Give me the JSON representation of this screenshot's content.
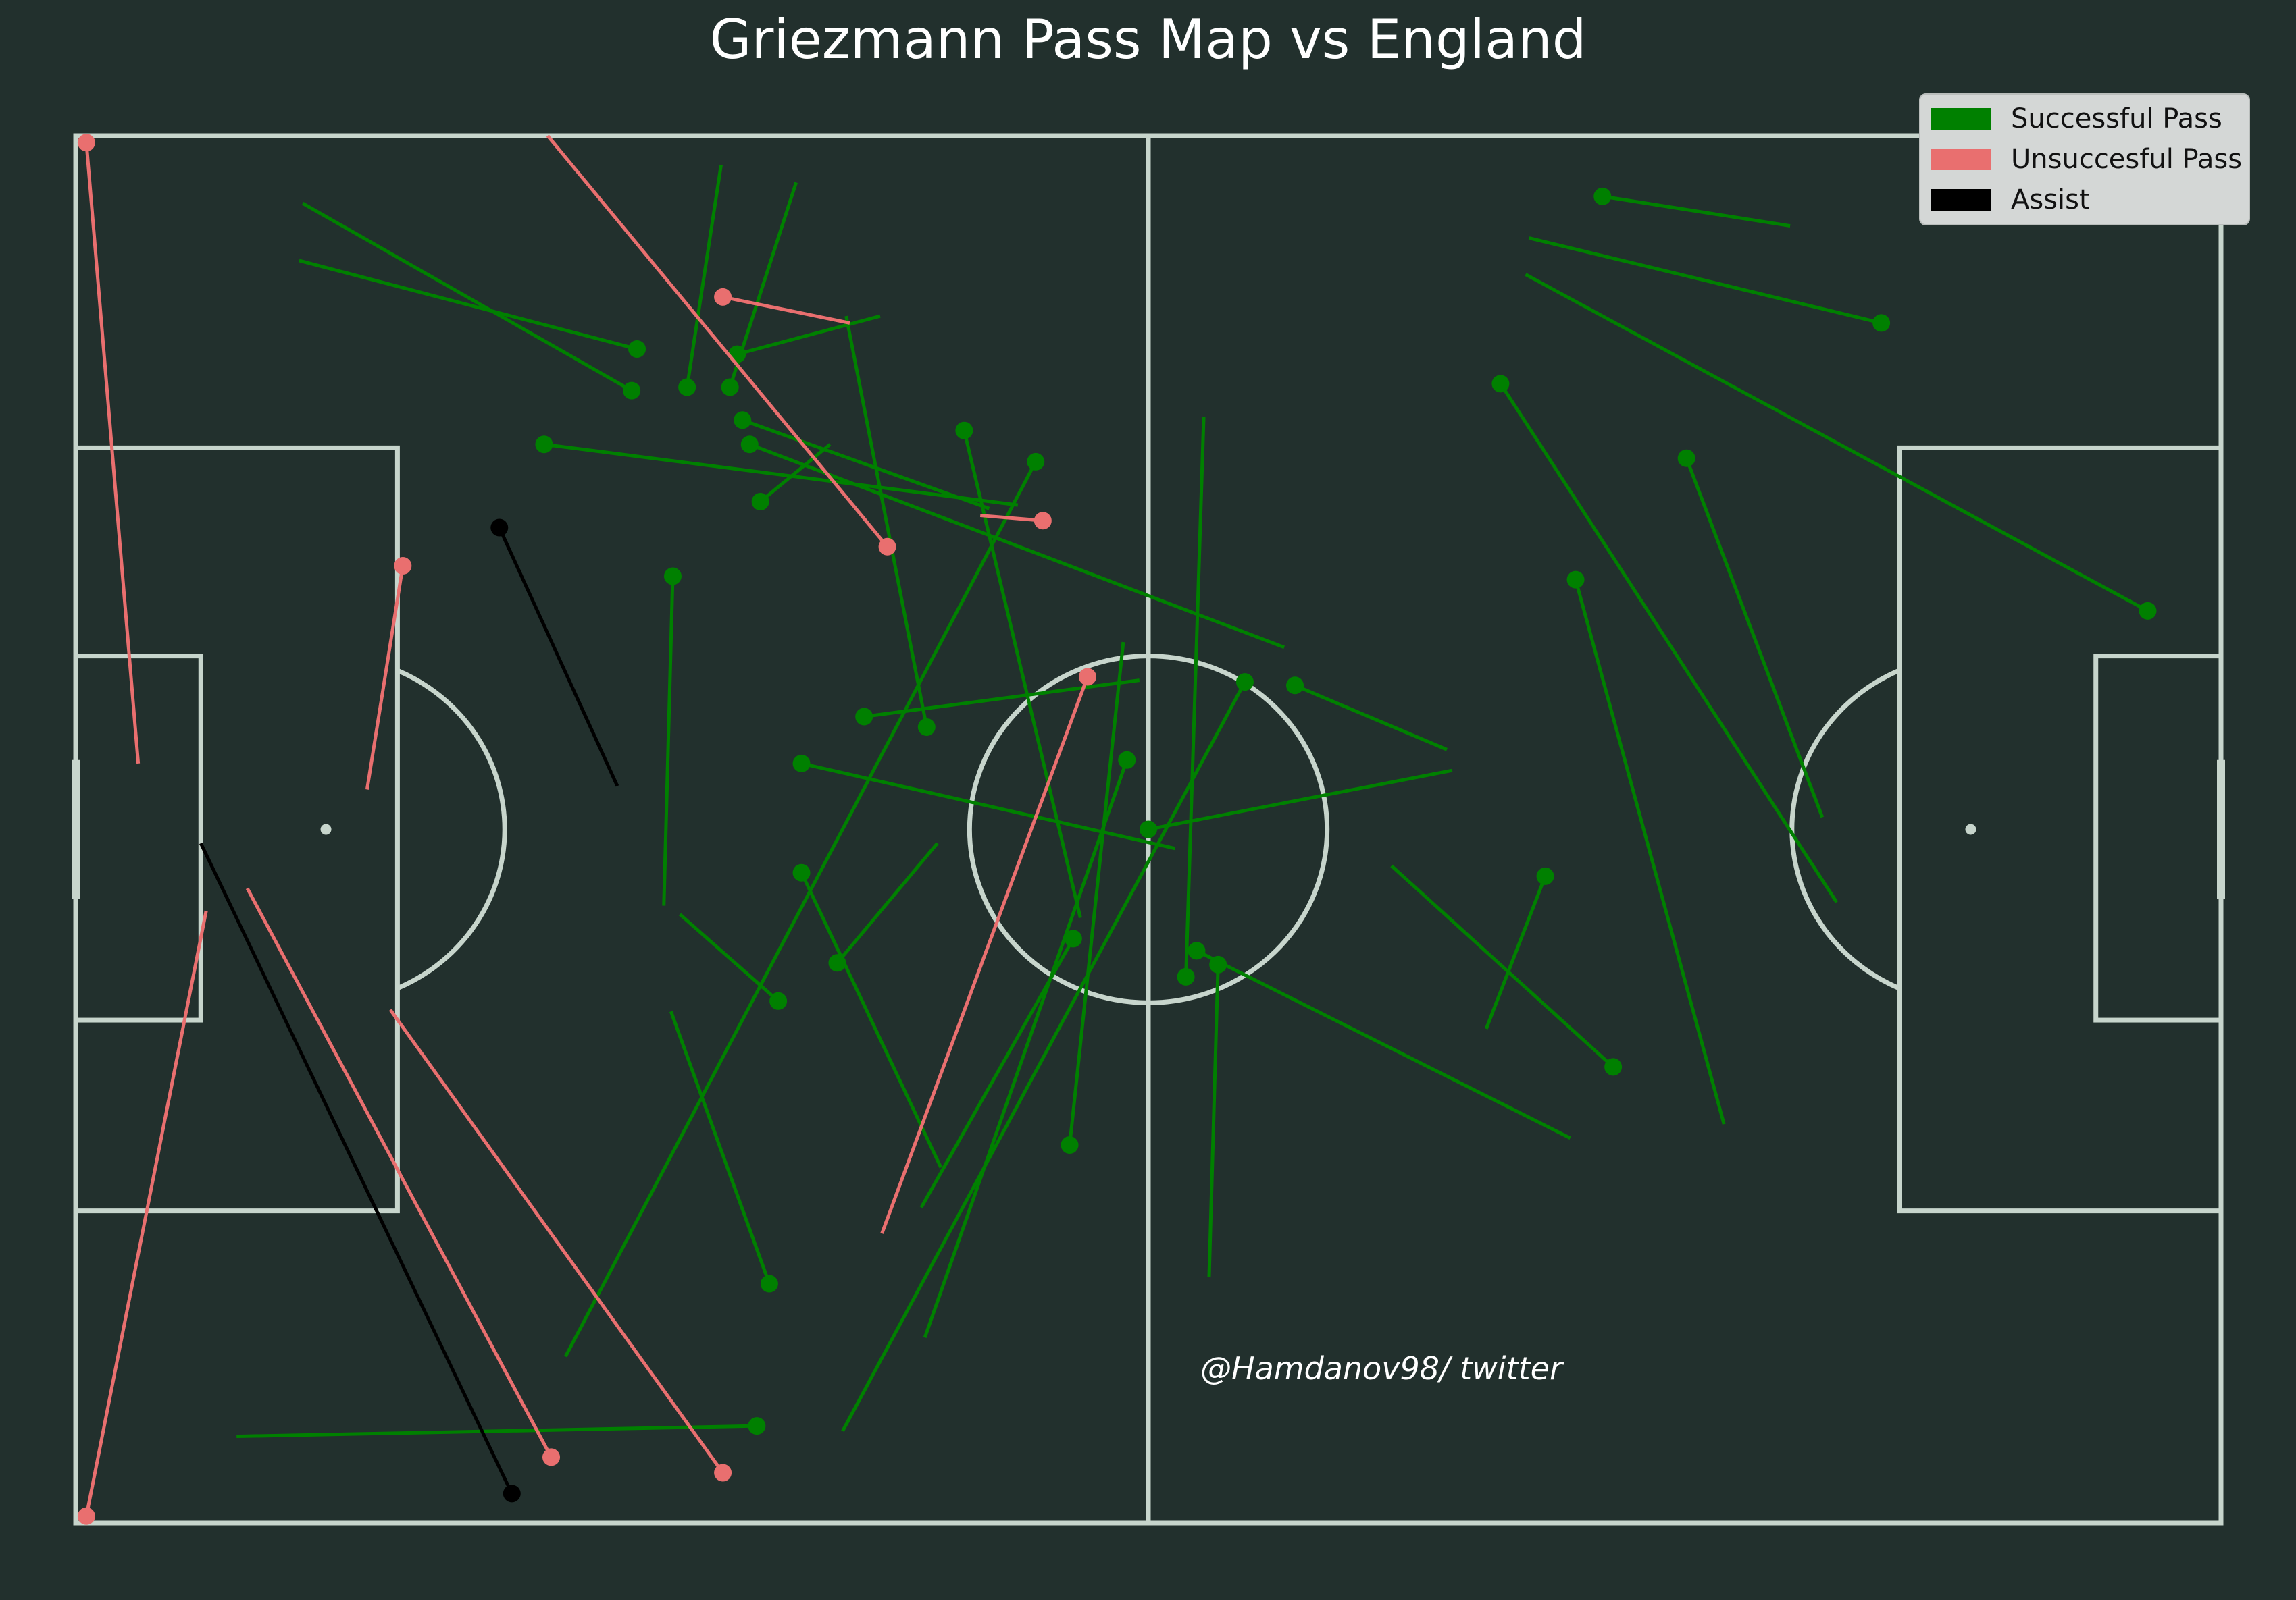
{
  "chart_data": {
    "type": "scatter",
    "title": "Griezmann Pass Map vs England",
    "credit": "@Hamdanov98/ twitter",
    "pitch": {
      "length": 120,
      "width": 80
    },
    "legend": {
      "placement": "top-right",
      "items": [
        {
          "label": "Successful Pass",
          "color": "#008000"
        },
        {
          "label": "Unsuccesful Pass",
          "color": "#e96f6f"
        },
        {
          "label": "Assist",
          "color": "#000000"
        }
      ]
    },
    "colors": {
      "pitch": "#22302d",
      "lines": "#c7d5cc",
      "successful": "#008000",
      "unsuccessful": "#e96f6f",
      "assist": "#000000"
    },
    "series": [
      {
        "name": "Successful Pass",
        "passes": [
          {
            "x": 31.4,
            "y": 12.3,
            "end_x": 12.5,
            "end_y": 7.2
          },
          {
            "x": 31.1,
            "y": 14.7,
            "end_x": 12.7,
            "end_y": 3.9
          },
          {
            "x": 34.2,
            "y": 14.5,
            "end_x": 36.1,
            "end_y": 1.7
          },
          {
            "x": 36.6,
            "y": 14.5,
            "end_x": 40.3,
            "end_y": 2.7
          },
          {
            "x": 37.0,
            "y": 12.6,
            "end_x": 45.0,
            "end_y": 10.4
          },
          {
            "x": 26.2,
            "y": 17.8,
            "end_x": 52.7,
            "end_y": 21.3
          },
          {
            "x": 37.3,
            "y": 16.4,
            "end_x": 51.1,
            "end_y": 21.5
          },
          {
            "x": 37.7,
            "y": 17.8,
            "end_x": 67.6,
            "end_y": 29.5
          },
          {
            "x": 38.3,
            "y": 21.1,
            "end_x": 42.2,
            "end_y": 17.8
          },
          {
            "x": 49.7,
            "y": 17.0,
            "end_x": 56.2,
            "end_y": 45.1
          },
          {
            "x": 47.6,
            "y": 34.1,
            "end_x": 43.1,
            "end_y": 10.4
          },
          {
            "x": 53.7,
            "y": 18.8,
            "end_x": 27.4,
            "end_y": 70.4
          },
          {
            "x": 33.4,
            "y": 25.4,
            "end_x": 32.9,
            "end_y": 44.4
          },
          {
            "x": 44.1,
            "y": 33.5,
            "end_x": 59.5,
            "end_y": 31.4
          },
          {
            "x": 40.6,
            "y": 36.2,
            "end_x": 61.5,
            "end_y": 41.1
          },
          {
            "x": 40.6,
            "y": 42.5,
            "end_x": 48.4,
            "end_y": 59.5
          },
          {
            "x": 42.6,
            "y": 47.7,
            "end_x": 48.2,
            "end_y": 40.8
          },
          {
            "x": 39.3,
            "y": 49.9,
            "end_x": 33.8,
            "end_y": 44.9
          },
          {
            "x": 38.8,
            "y": 66.2,
            "end_x": 33.3,
            "end_y": 50.5
          },
          {
            "x": 38.1,
            "y": 74.4,
            "end_x": 9.0,
            "end_y": 75.0
          },
          {
            "x": 55.8,
            "y": 46.3,
            "end_x": 47.3,
            "end_y": 61.8
          },
          {
            "x": 58.8,
            "y": 36.0,
            "end_x": 47.5,
            "end_y": 69.3
          },
          {
            "x": 55.6,
            "y": 58.2,
            "end_x": 58.6,
            "end_y": 29.2
          },
          {
            "x": 65.4,
            "y": 31.5,
            "end_x": 42.9,
            "end_y": 74.7
          },
          {
            "x": 60.0,
            "y": 40.0,
            "end_x": 77.0,
            "end_y": 36.6
          },
          {
            "x": 62.1,
            "y": 48.5,
            "end_x": 63.1,
            "end_y": 16.2
          },
          {
            "x": 63.9,
            "y": 47.8,
            "end_x": 63.4,
            "end_y": 65.8
          },
          {
            "x": 62.7,
            "y": 47.0,
            "end_x": 83.6,
            "end_y": 57.8
          },
          {
            "x": 68.2,
            "y": 31.7,
            "end_x": 76.7,
            "end_y": 35.4
          },
          {
            "x": 82.2,
            "y": 42.7,
            "end_x": 78.9,
            "end_y": 51.5
          },
          {
            "x": 86.0,
            "y": 53.7,
            "end_x": 73.6,
            "end_y": 42.1
          },
          {
            "x": 83.9,
            "y": 25.6,
            "end_x": 92.2,
            "end_y": 57.0
          },
          {
            "x": 90.1,
            "y": 18.6,
            "end_x": 97.7,
            "end_y": 39.3
          },
          {
            "x": 79.7,
            "y": 14.3,
            "end_x": 98.5,
            "end_y": 44.2
          },
          {
            "x": 85.4,
            "y": 3.5,
            "end_x": 95.9,
            "end_y": 5.2
          },
          {
            "x": 101.0,
            "y": 10.8,
            "end_x": 81.3,
            "end_y": 5.9
          },
          {
            "x": 115.9,
            "y": 27.4,
            "end_x": 81.1,
            "end_y": 8.0
          }
        ]
      },
      {
        "name": "Unsuccesful Pass",
        "passes": [
          {
            "x": 0.6,
            "y": 0.4,
            "end_x": 3.5,
            "end_y": 36.2
          },
          {
            "x": 18.3,
            "y": 24.8,
            "end_x": 16.3,
            "end_y": 37.7
          },
          {
            "x": 45.4,
            "y": 23.7,
            "end_x": 26.4,
            "end_y": 0.0
          },
          {
            "x": 36.2,
            "y": 9.3,
            "end_x": 43.3,
            "end_y": 10.8
          },
          {
            "x": 54.1,
            "y": 22.2,
            "end_x": 50.6,
            "end_y": 21.9
          },
          {
            "x": 56.6,
            "y": 31.2,
            "end_x": 45.1,
            "end_y": 63.3
          },
          {
            "x": 26.6,
            "y": 76.2,
            "end_x": 9.6,
            "end_y": 43.4
          },
          {
            "x": 36.2,
            "y": 77.1,
            "end_x": 17.6,
            "end_y": 50.4
          },
          {
            "x": 0.6,
            "y": 79.6,
            "end_x": 7.3,
            "end_y": 44.7
          }
        ]
      },
      {
        "name": "Assist",
        "passes": [
          {
            "x": 23.7,
            "y": 22.6,
            "end_x": 30.3,
            "end_y": 37.5
          },
          {
            "x": 24.4,
            "y": 78.3,
            "end_x": 7.0,
            "end_y": 40.8
          }
        ]
      }
    ]
  }
}
